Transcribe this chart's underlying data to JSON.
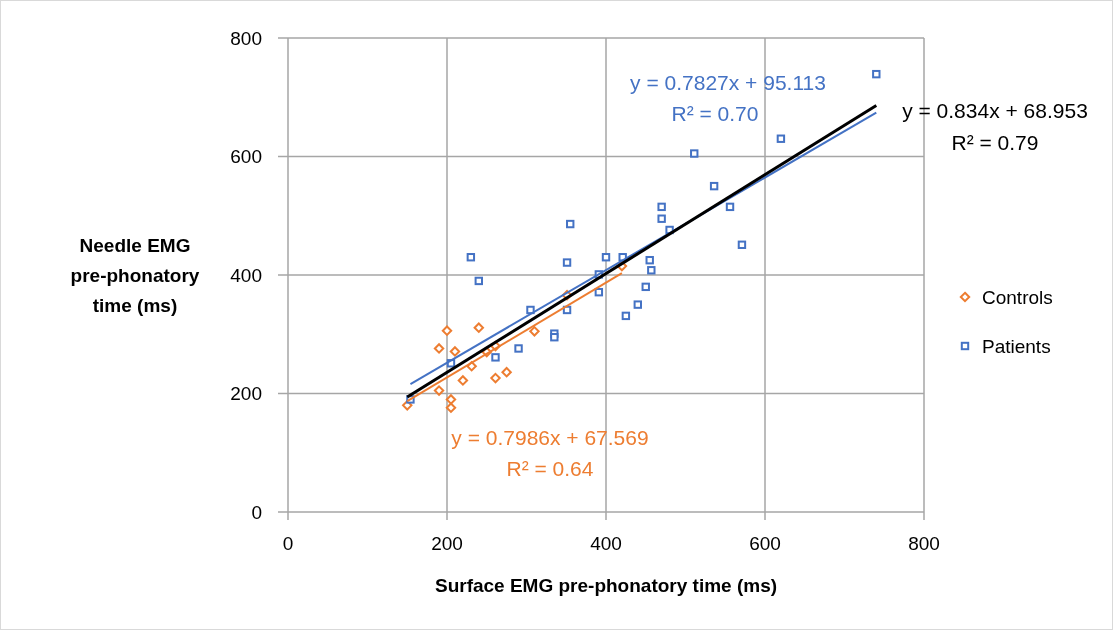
{
  "chart_data": {
    "type": "scatter",
    "xlabel": "Surface EMG pre-phonatory time (ms)",
    "ylabel": "Needle EMG pre-phonatory time (ms)",
    "xlim": [
      0,
      800
    ],
    "xticks": [
      0,
      200,
      400,
      600,
      800
    ],
    "ylim": [
      0,
      800
    ],
    "yticks": [
      0,
      200,
      400,
      600,
      800
    ],
    "grid": true,
    "legend": "right",
    "series": [
      {
        "name": "Controls",
        "color": "#ed7d31",
        "marker": "diamond",
        "x": [
          150,
          190,
          205,
          205,
          200,
          190,
          210,
          220,
          231,
          240,
          250,
          261,
          261,
          275,
          310,
          351,
          420
        ],
        "values": [
          180,
          205,
          190,
          176,
          306,
          276,
          271,
          222,
          246,
          311,
          270,
          280,
          226,
          236,
          305,
          366,
          415
        ]
      },
      {
        "name": "Patients",
        "color": "#4472c4",
        "marker": "square",
        "x": [
          154,
          205,
          230,
          240,
          261,
          290,
          305,
          335,
          335,
          351,
          355,
          351,
          391,
          391,
          400,
          421,
          425,
          440,
          450,
          455,
          457,
          470,
          470,
          480,
          511,
          536,
          556,
          571,
          620,
          740
        ],
        "values": [
          190,
          251,
          430,
          390,
          261,
          276,
          341,
          301,
          295,
          421,
          486,
          341,
          401,
          371,
          430,
          430,
          331,
          350,
          380,
          425,
          408,
          515,
          495,
          476,
          605,
          550,
          515,
          451,
          630,
          739
        ]
      },
      {
        "type": "line",
        "color": "#4472c4",
        "x": [
          154,
          740
        ],
        "values": [
          216,
          674
        ]
      },
      {
        "type": "line",
        "color": "#ed7d31",
        "x": [
          150,
          420
        ],
        "values": [
          187,
          403
        ]
      },
      {
        "type": "line",
        "color": "#000000",
        "x": [
          150,
          740
        ],
        "values": [
          194,
          686
        ]
      }
    ],
    "annotations": [
      "y = 0.7827x + 95.113",
      "R² = 0.70",
      "y = 0.834x + 68.953",
      "R² = 0.79",
      "y = 0.7986x + 67.569",
      "R² = 0.64"
    ]
  }
}
